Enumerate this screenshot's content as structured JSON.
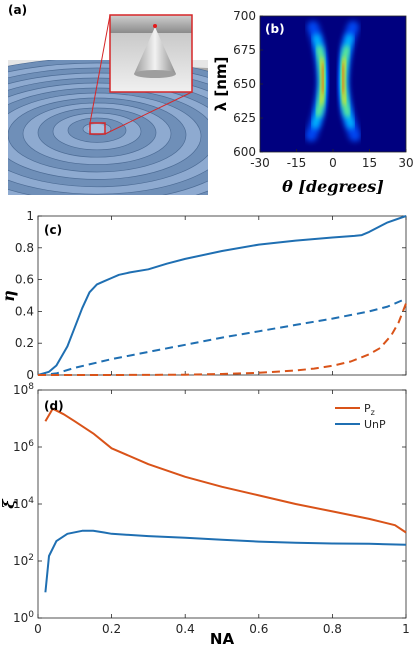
{
  "panels": {
    "a": {
      "label": "(a)"
    },
    "b": {
      "label": "(b)"
    },
    "c": {
      "label": "(c)"
    },
    "d": {
      "label": "(d)"
    }
  },
  "colors": {
    "blue": "#1f6fb2",
    "orange": "#d95319",
    "axis": "#262626"
  },
  "chart_data": [
    {
      "panel": "b",
      "type": "heatmap",
      "xlabel": "θ [degrees]",
      "ylabel": "λ [nm]",
      "xlim": [
        -30,
        30
      ],
      "ylim": [
        600,
        700
      ],
      "xticks": [
        -30,
        -15,
        0,
        15,
        30
      ],
      "yticks": [
        600,
        625,
        650,
        675,
        700
      ],
      "lobes": [
        {
          "theta_center_at_650": -4,
          "lambda_peak": 648
        },
        {
          "theta_center_at_650": 4,
          "lambda_peak": 648
        }
      ]
    },
    {
      "panel": "c",
      "type": "line",
      "xlabel": "",
      "ylabel": "η",
      "xlim": [
        0,
        1
      ],
      "ylim": [
        0,
        1
      ],
      "xticks": [
        0,
        0.2,
        0.4,
        0.6,
        0.8,
        1
      ],
      "yticks": [
        0,
        0.2,
        0.4,
        0.6,
        0.8,
        1
      ],
      "series": [
        {
          "color": "blue",
          "dash": false,
          "x": [
            0,
            0.03,
            0.05,
            0.08,
            0.1,
            0.12,
            0.14,
            0.16,
            0.18,
            0.2,
            0.22,
            0.25,
            0.3,
            0.35,
            0.4,
            0.5,
            0.6,
            0.7,
            0.8,
            0.86,
            0.88,
            0.9,
            0.95,
            1.0
          ],
          "y": [
            0,
            0.02,
            0.06,
            0.18,
            0.3,
            0.42,
            0.52,
            0.57,
            0.59,
            0.61,
            0.63,
            0.645,
            0.665,
            0.7,
            0.73,
            0.78,
            0.82,
            0.845,
            0.865,
            0.875,
            0.88,
            0.9,
            0.96,
            1.0
          ]
        },
        {
          "color": "blue",
          "dash": true,
          "x": [
            0,
            0.02,
            0.05,
            0.1,
            0.2,
            0.3,
            0.4,
            0.5,
            0.6,
            0.7,
            0.8,
            0.9,
            0.95,
            1.0
          ],
          "y": [
            0,
            0.003,
            0.01,
            0.045,
            0.1,
            0.145,
            0.19,
            0.235,
            0.275,
            0.315,
            0.355,
            0.4,
            0.43,
            0.48
          ]
        },
        {
          "color": "orange",
          "dash": true,
          "x": [
            0,
            0.2,
            0.4,
            0.5,
            0.6,
            0.7,
            0.75,
            0.8,
            0.85,
            0.9,
            0.93,
            0.96,
            0.98,
            1.0
          ],
          "y": [
            0,
            0.0,
            0.002,
            0.006,
            0.014,
            0.028,
            0.04,
            0.058,
            0.085,
            0.13,
            0.17,
            0.25,
            0.33,
            0.45
          ]
        }
      ]
    },
    {
      "panel": "d",
      "type": "line",
      "xlabel": "NA",
      "ylabel": "ξ",
      "xlim": [
        0,
        1
      ],
      "ylim": [
        1,
        100000000
      ],
      "yscale": "log",
      "xticks": [
        0,
        0.2,
        0.4,
        0.6,
        0.8,
        1
      ],
      "yticks": [
        1,
        100,
        10000,
        1000000,
        100000000
      ],
      "ytick_labels": [
        {
          "base": "10",
          "exp": "0"
        },
        {
          "base": "10",
          "exp": "2"
        },
        {
          "base": "10",
          "exp": "4"
        },
        {
          "base": "10",
          "exp": "6"
        },
        {
          "base": "10",
          "exp": "8"
        }
      ],
      "legend": {
        "placement": "top-right",
        "entries": [
          {
            "base": "P",
            "sub": "z",
            "color": "orange"
          },
          {
            "text": "UnP",
            "color": "blue"
          }
        ]
      },
      "series": [
        {
          "color": "orange",
          "x": [
            0.02,
            0.04,
            0.07,
            0.1,
            0.15,
            0.2,
            0.3,
            0.4,
            0.5,
            0.6,
            0.7,
            0.8,
            0.9,
            0.97,
            1.0
          ],
          "y": [
            8000000,
            22000000,
            14000000,
            8000000,
            3000000,
            900000,
            250000,
            90000,
            40000,
            20000,
            10000,
            5500,
            3000,
            1800,
            1000
          ]
        },
        {
          "color": "blue",
          "x": [
            0.02,
            0.03,
            0.05,
            0.08,
            0.12,
            0.15,
            0.18,
            0.2,
            0.3,
            0.4,
            0.5,
            0.6,
            0.7,
            0.8,
            0.9,
            1.0
          ],
          "y": [
            8,
            150,
            500,
            900,
            1150,
            1150,
            1000,
            900,
            750,
            650,
            560,
            480,
            440,
            410,
            400,
            370
          ]
        }
      ]
    }
  ]
}
